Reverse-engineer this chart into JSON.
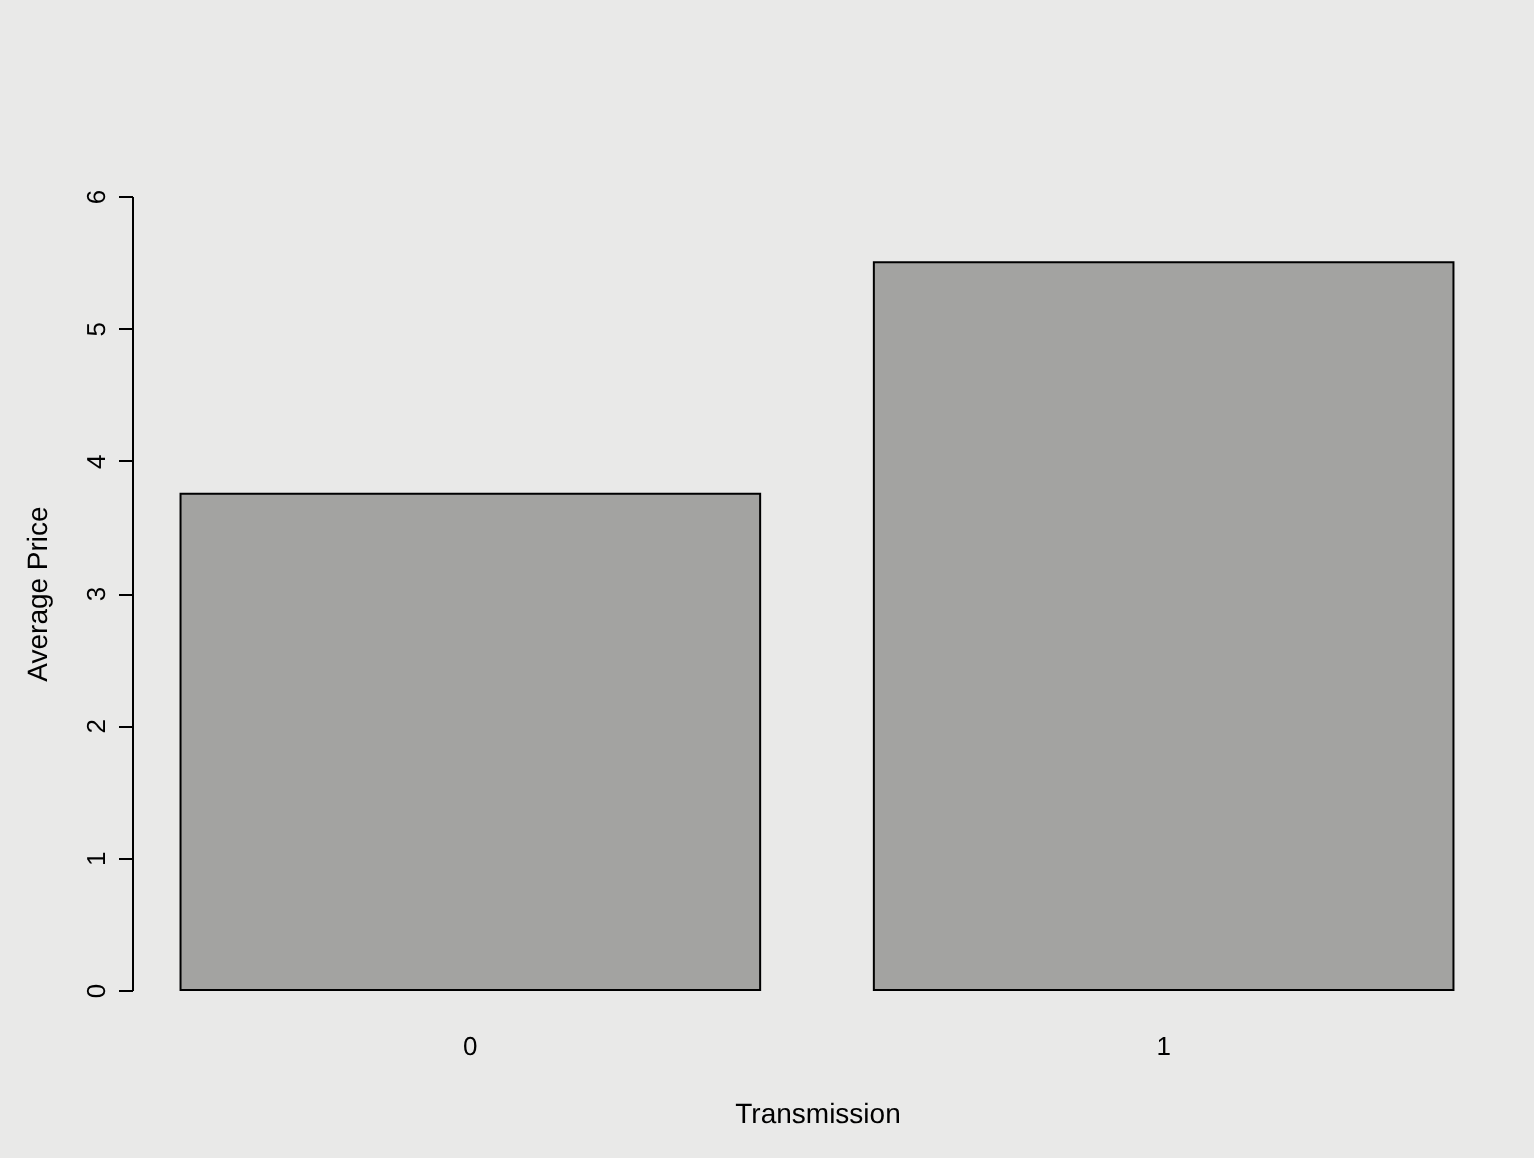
{
  "chart_data": {
    "type": "bar",
    "xlabel": "Transmission",
    "ylabel": "Average Price",
    "categories": [
      "0",
      "1"
    ],
    "values": [
      3.75,
      5.5
    ],
    "color": "#a3a3a1",
    "ylim": [
      0,
      6
    ],
    "yticks": [
      0,
      1,
      2,
      3,
      4,
      5,
      6
    ],
    "grid": false
  }
}
